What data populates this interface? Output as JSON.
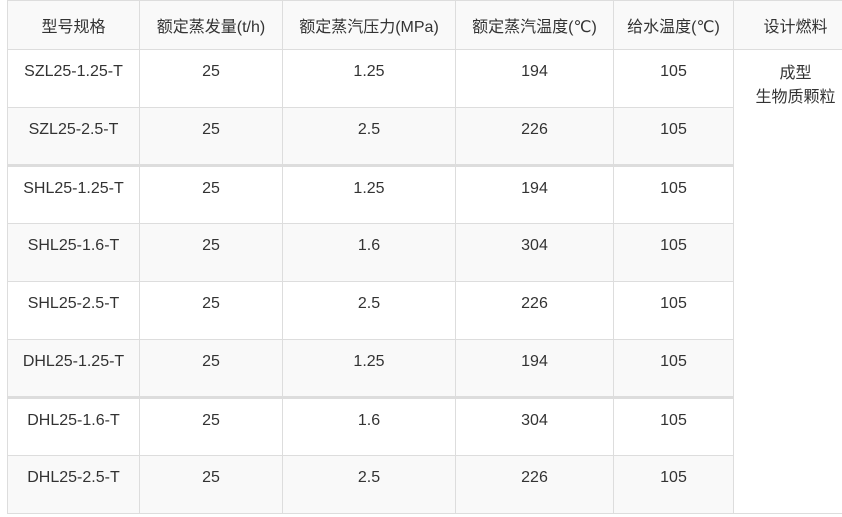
{
  "headers": [
    "型号规格",
    "额定蒸发量(t/h)",
    "额定蒸汽压力(MPa)",
    "额定蒸汽温度(℃)",
    "给水温度(℃)",
    "设计燃料"
  ],
  "fuel": {
    "line1": "成型",
    "line2": "生物质颗粒"
  },
  "rows": [
    [
      "SZL25-1.25-T",
      "25",
      "1.25",
      "194",
      "105"
    ],
    [
      "SZL25-2.5-T",
      "25",
      "2.5",
      "226",
      "105"
    ],
    [
      "SHL25-1.25-T",
      "25",
      "1.25",
      "194",
      "105"
    ],
    [
      "SHL25-1.6-T",
      "25",
      "1.6",
      "304",
      "105"
    ],
    [
      "SHL25-2.5-T",
      "25",
      "2.5",
      "226",
      "105"
    ],
    [
      "DHL25-1.25-T",
      "25",
      "1.25",
      "194",
      "105"
    ],
    [
      "DHL25-1.6-T",
      "25",
      "1.6",
      "304",
      "105"
    ],
    [
      "DHL25-2.5-T",
      "25",
      "2.5",
      "226",
      "105"
    ]
  ]
}
